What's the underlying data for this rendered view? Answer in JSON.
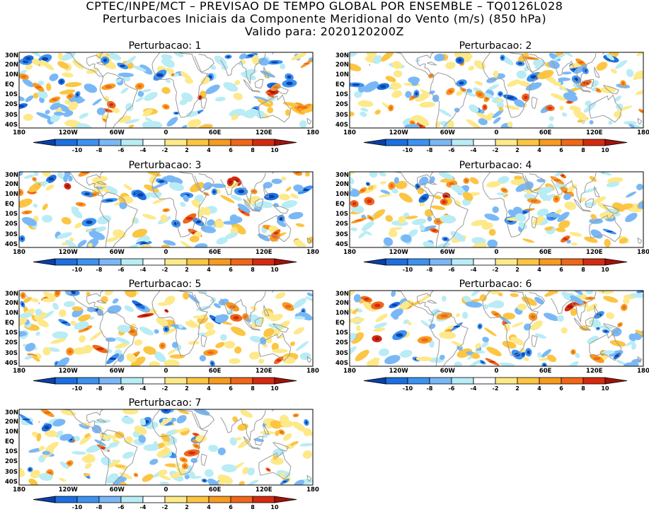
{
  "title": {
    "line1": "CPTEC/INPE/MCT – PREVISAO DE TEMPO GLOBAL POR ENSEMBLE – TQ0126L028",
    "line2": "Perturbacoes Iniciais da Componente Meridional do Vento (m/s) (850 hPa)",
    "line3": "Valido para: 2020120200Z"
  },
  "lat_labels": [
    "30N",
    "20N",
    "10N",
    "EQ",
    "10S",
    "20S",
    "30S",
    "40S"
  ],
  "lon_labels": [
    "180",
    "120W",
    "60W",
    "0",
    "60E",
    "120E",
    "180"
  ],
  "colorbar": {
    "labels": [
      "-10",
      "-8",
      "-6",
      "-4",
      "-2",
      "2",
      "4",
      "6",
      "8",
      "10"
    ],
    "colors": [
      "#0a3fa8",
      "#1c6fe0",
      "#3d92f0",
      "#7ab8f5",
      "#b9ecf5",
      "#ffffff",
      "#fde98a",
      "#fcc542",
      "#f79a20",
      "#f06618",
      "#d42a10",
      "#a0120a"
    ]
  },
  "panels": [
    {
      "title": "Perturbacao: 1"
    },
    {
      "title": "Perturbacao: 2"
    },
    {
      "title": "Perturbacao: 3"
    },
    {
      "title": "Perturbacao: 4"
    },
    {
      "title": "Perturbacao: 5"
    },
    {
      "title": "Perturbacao: 6"
    },
    {
      "title": "Perturbacao: 7"
    }
  ]
}
